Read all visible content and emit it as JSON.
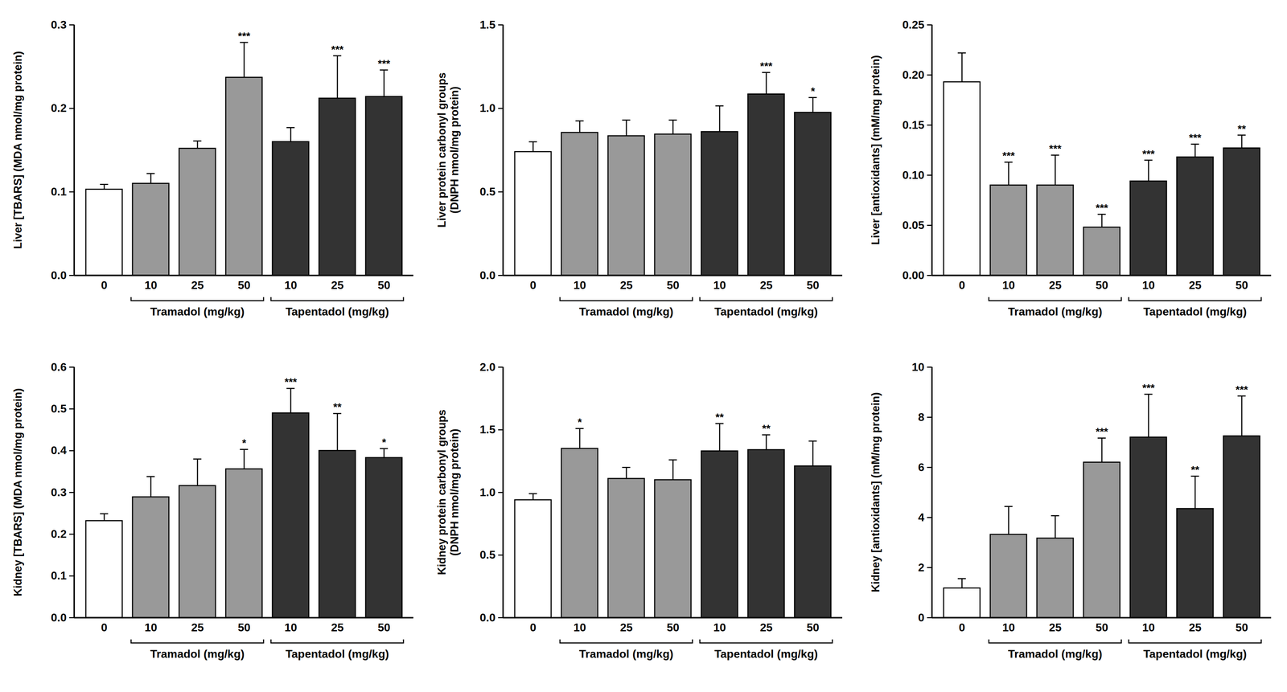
{
  "chart_data": [
    {
      "type": "bar",
      "y_label": [
        "Liver [TBARS] (MDA nmol/mg protein)"
      ],
      "categories": [
        "0",
        "10",
        "25",
        "50",
        "10",
        "25",
        "50"
      ],
      "groups": [
        null,
        "Tramadol (mg/kg)",
        "Tramadol (mg/kg)",
        "Tramadol (mg/kg)",
        "Tapentadol (mg/kg)",
        "Tapentadol (mg/kg)",
        "Tapentadol (mg/kg)"
      ],
      "values": [
        0.103,
        0.11,
        0.152,
        0.237,
        0.16,
        0.212,
        0.214
      ],
      "errors": [
        0.006,
        0.012,
        0.009,
        0.042,
        0.017,
        0.051,
        0.032
      ],
      "annotations": [
        null,
        null,
        null,
        "***",
        null,
        "***",
        "***"
      ],
      "colors": [
        "#ffffff",
        "#999999",
        "#999999",
        "#999999",
        "#333333",
        "#333333",
        "#333333"
      ],
      "ylim": [
        0,
        0.3
      ],
      "yticks": [
        {
          "value": 0,
          "label": "0.0"
        },
        0.1,
        0.2,
        0.3
      ]
    },
    {
      "type": "bar",
      "y_label": [
        "Liver protein carbonyl groups",
        "(DNPH nmol/mg protein)"
      ],
      "categories": [
        "0",
        "10",
        "25",
        "50",
        "10",
        "25",
        "50"
      ],
      "groups": [
        null,
        "Tramadol (mg/kg)",
        "Tramadol (mg/kg)",
        "Tramadol (mg/kg)",
        "Tapentadol (mg/kg)",
        "Tapentadol (mg/kg)",
        "Tapentadol (mg/kg)"
      ],
      "values": [
        0.74,
        0.855,
        0.835,
        0.845,
        0.86,
        1.085,
        0.975
      ],
      "errors": [
        0.06,
        0.07,
        0.095,
        0.085,
        0.155,
        0.13,
        0.09
      ],
      "annotations": [
        null,
        null,
        null,
        null,
        null,
        "***",
        "*"
      ],
      "colors": [
        "#ffffff",
        "#999999",
        "#999999",
        "#999999",
        "#333333",
        "#333333",
        "#333333"
      ],
      "ylim": [
        0,
        1.5
      ],
      "yticks": [
        {
          "value": 0,
          "label": "0.0"
        },
        0.5,
        {
          "value": 1,
          "label": "1.0"
        },
        1.5
      ]
    },
    {
      "type": "bar",
      "y_label": [
        "Liver [antioxidants] (mM/mg protein)"
      ],
      "categories": [
        "0",
        "10",
        "25",
        "50",
        "10",
        "25",
        "50"
      ],
      "groups": [
        null,
        "Tramadol (mg/kg)",
        "Tramadol (mg/kg)",
        "Tramadol (mg/kg)",
        "Tapentadol (mg/kg)",
        "Tapentadol (mg/kg)",
        "Tapentadol (mg/kg)"
      ],
      "values": [
        0.193,
        0.09,
        0.09,
        0.048,
        0.094,
        0.118,
        0.127
      ],
      "errors": [
        0.029,
        0.023,
        0.03,
        0.013,
        0.021,
        0.013,
        0.013
      ],
      "annotations": [
        null,
        "***",
        "***",
        "***",
        "***",
        "***",
        "**"
      ],
      "colors": [
        "#ffffff",
        "#999999",
        "#999999",
        "#999999",
        "#333333",
        "#333333",
        "#333333"
      ],
      "ylim": [
        0,
        0.25
      ],
      "yticks": [
        {
          "value": 0,
          "label": "0.00"
        },
        0.05,
        {
          "value": 0.1,
          "label": "0.10"
        },
        0.15,
        {
          "value": 0.2,
          "label": "0.20"
        },
        0.25
      ]
    },
    {
      "type": "bar",
      "y_label": [
        "Kidney [TBARS] (MDA nmol/mg protein)"
      ],
      "categories": [
        "0",
        "10",
        "25",
        "50",
        "10",
        "25",
        "50"
      ],
      "groups": [
        null,
        "Tramadol (mg/kg)",
        "Tramadol (mg/kg)",
        "Tramadol (mg/kg)",
        "Tapentadol (mg/kg)",
        "Tapentadol (mg/kg)",
        "Tapentadol (mg/kg)"
      ],
      "values": [
        0.232,
        0.289,
        0.316,
        0.356,
        0.49,
        0.4,
        0.383
      ],
      "errors": [
        0.017,
        0.049,
        0.064,
        0.047,
        0.059,
        0.089,
        0.022
      ],
      "annotations": [
        null,
        null,
        null,
        "*",
        "***",
        "**",
        "*"
      ],
      "colors": [
        "#ffffff",
        "#999999",
        "#999999",
        "#999999",
        "#333333",
        "#333333",
        "#333333"
      ],
      "ylim": [
        0,
        0.6
      ],
      "yticks": [
        {
          "value": 0,
          "label": "0.0"
        },
        0.1,
        0.2,
        0.3,
        0.4,
        0.5,
        0.6
      ]
    },
    {
      "type": "bar",
      "y_label": [
        "Kidney protein carbonyl groups",
        "(DNPH nmol/mg protein)"
      ],
      "categories": [
        "0",
        "10",
        "25",
        "50",
        "10",
        "25",
        "50"
      ],
      "groups": [
        null,
        "Tramadol (mg/kg)",
        "Tramadol (mg/kg)",
        "Tramadol (mg/kg)",
        "Tapentadol (mg/kg)",
        "Tapentadol (mg/kg)",
        "Tapentadol (mg/kg)"
      ],
      "values": [
        0.94,
        1.35,
        1.11,
        1.1,
        1.33,
        1.34,
        1.21
      ],
      "errors": [
        0.05,
        0.16,
        0.09,
        0.16,
        0.22,
        0.12,
        0.2
      ],
      "annotations": [
        null,
        "*",
        null,
        null,
        "**",
        "**",
        null
      ],
      "colors": [
        "#ffffff",
        "#999999",
        "#999999",
        "#999999",
        "#333333",
        "#333333",
        "#333333"
      ],
      "ylim": [
        0,
        2.0
      ],
      "yticks": [
        {
          "value": 0,
          "label": "0.0"
        },
        0.5,
        {
          "value": 1,
          "label": "1.0"
        },
        1.5,
        {
          "value": 2,
          "label": "2.0"
        }
      ]
    },
    {
      "type": "bar",
      "y_label": [
        "Kidney [antioxidants] (mM/mg protein)"
      ],
      "categories": [
        "0",
        "10",
        "25",
        "50",
        "10",
        "25",
        "50"
      ],
      "groups": [
        null,
        "Tramadol (mg/kg)",
        "Tramadol (mg/kg)",
        "Tramadol (mg/kg)",
        "Tapentadol (mg/kg)",
        "Tapentadol (mg/kg)",
        "Tapentadol (mg/kg)"
      ],
      "values": [
        1.18,
        3.32,
        3.17,
        6.2,
        7.2,
        4.35,
        7.25
      ],
      "errors": [
        0.38,
        1.12,
        0.9,
        0.97,
        1.72,
        1.3,
        1.6
      ],
      "annotations": [
        null,
        null,
        null,
        "***",
        "***",
        "**",
        "***"
      ],
      "colors": [
        "#ffffff",
        "#999999",
        "#999999",
        "#999999",
        "#333333",
        "#333333",
        "#333333"
      ],
      "ylim": [
        0,
        10
      ],
      "yticks": [
        0,
        2,
        4,
        6,
        8,
        10
      ]
    }
  ]
}
